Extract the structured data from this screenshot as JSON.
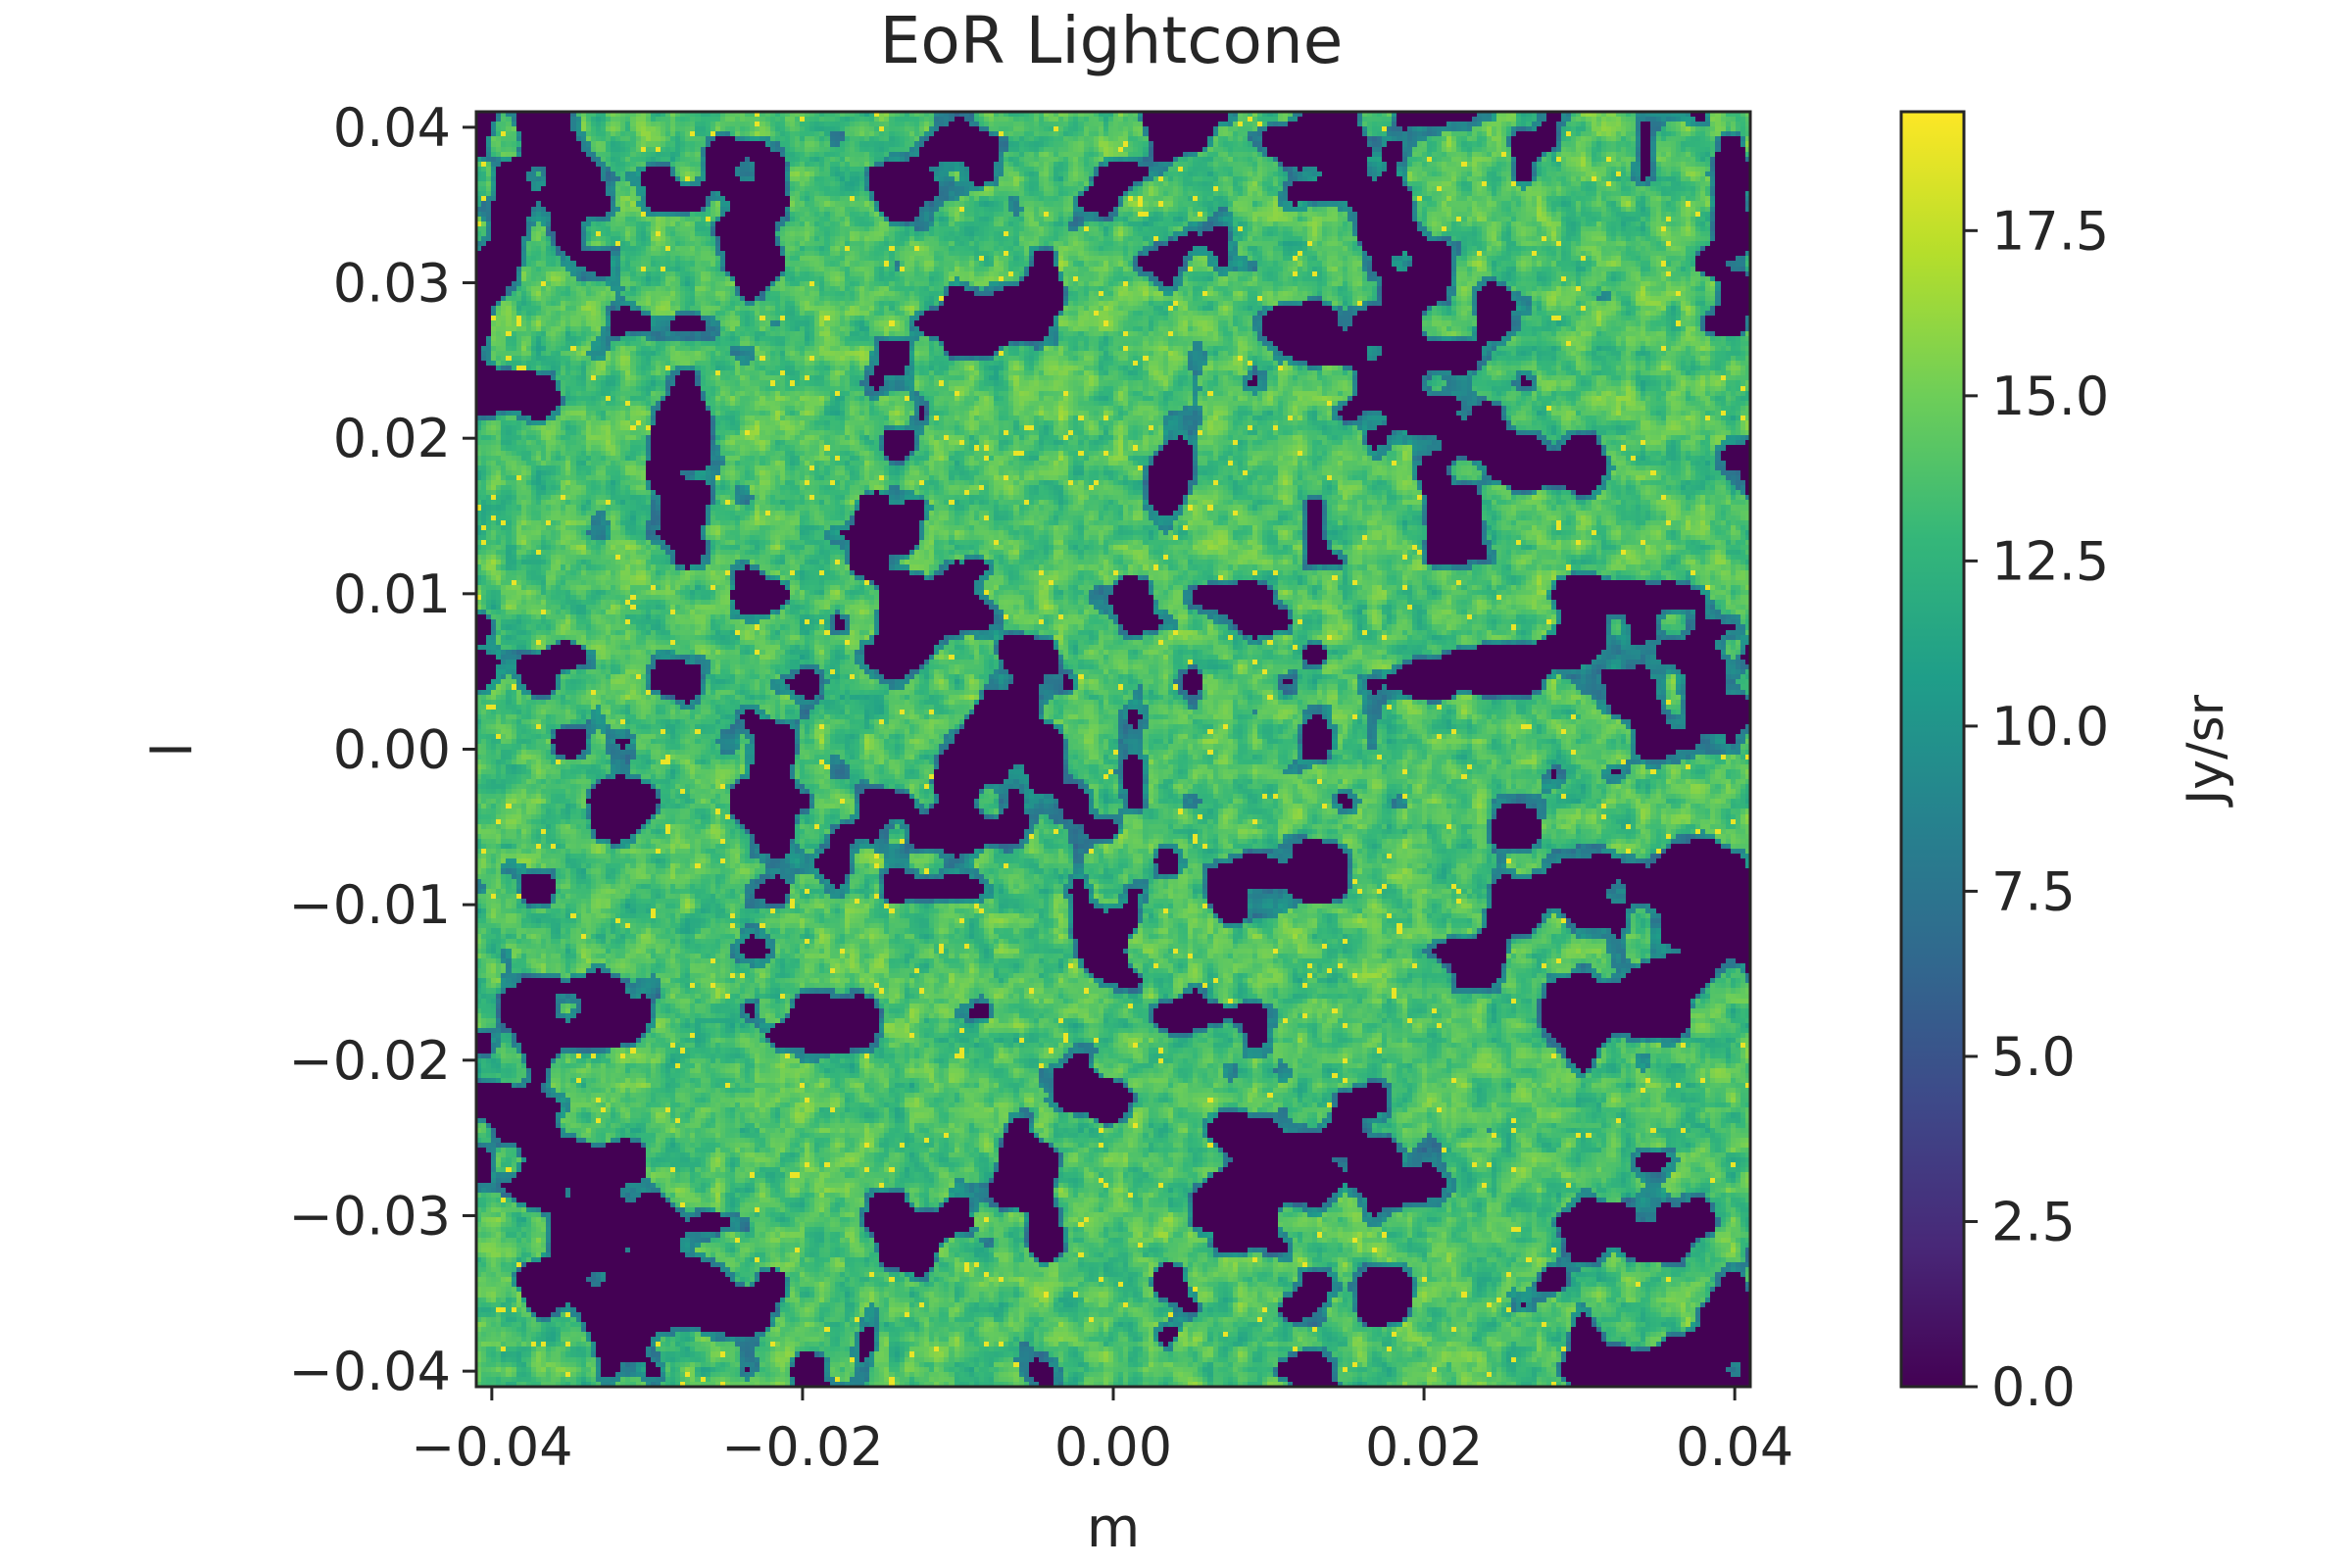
{
  "chart_data": {
    "type": "heatmap",
    "title": "EoR Lightcone",
    "xlabel": "m",
    "ylabel": "l",
    "xlim": [
      -0.041,
      0.041
    ],
    "ylim": [
      -0.041,
      0.041
    ],
    "x_ticks": [
      -0.04,
      -0.02,
      0.0,
      0.02,
      0.04
    ],
    "x_tick_labels": [
      "−0.04",
      "−0.02",
      "0.00",
      "0.02",
      "0.04"
    ],
    "y_ticks": [
      0.04,
      0.03,
      0.02,
      0.01,
      0.0,
      -0.01,
      -0.02,
      -0.03,
      -0.04
    ],
    "y_tick_labels": [
      "0.04",
      "0.03",
      "0.02",
      "0.01",
      "0.00",
      "−0.01",
      "−0.02",
      "−0.03",
      "−0.04"
    ],
    "colorbar": {
      "label": "Jy/sr",
      "colormap": "viridis",
      "range": [
        0.0,
        19.3
      ],
      "ticks": [
        0.0,
        2.5,
        5.0,
        7.5,
        10.0,
        12.5,
        15.0,
        17.5
      ],
      "tick_labels": [
        "0.0",
        "2.5",
        "5.0",
        "7.5",
        "10.0",
        "12.5",
        "15.0",
        "17.5"
      ]
    },
    "grid": false
  },
  "colors": {
    "viridis": [
      "#440154",
      "#482878",
      "#3e4989",
      "#31688e",
      "#26828e",
      "#1f9e89",
      "#35b779",
      "#6ece58",
      "#b5de2b",
      "#fde725"
    ]
  }
}
